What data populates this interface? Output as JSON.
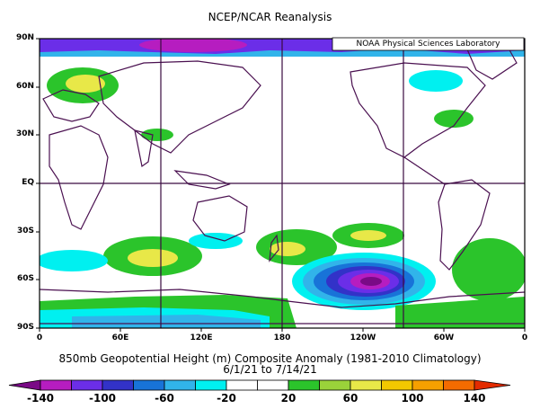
{
  "title": "NCEP/NCAR Reanalysis",
  "credit": "NOAA Physical Sciences Laboratory",
  "caption": "850mb Geopotential Height (m) Composite Anomaly (1981-2010 Climatology)",
  "dates": "6/1/21  to 7/14/21",
  "lat_labels": [
    "90N",
    "60N",
    "30N",
    "EQ",
    "30S",
    "60S",
    "90S"
  ],
  "lon_labels": [
    "0",
    "60E",
    "120E",
    "180",
    "120W",
    "60W",
    "0"
  ],
  "colorbar": {
    "tick_labels": [
      "-140",
      "-100",
      "-60",
      "-20",
      "20",
      "60",
      "100",
      "140"
    ],
    "colors": [
      "#7a0a86",
      "#b61dc0",
      "#6b2ee8",
      "#3232c8",
      "#1873d8",
      "#31b4ea",
      "#00f0f0",
      "#ffffff",
      "#ffffff",
      "#2bc42b",
      "#9ad23a",
      "#e8e848",
      "#f2c800",
      "#f6a000",
      "#f46b00",
      "#e32b00"
    ]
  },
  "anomaly_features": [
    {
      "region": "North Pole / Siberia",
      "sign": "negative",
      "intensity": "moderate"
    },
    {
      "region": "Scandinavia",
      "sign": "positive",
      "intensity": "moderate"
    },
    {
      "region": "South Pacific near 60S 130W",
      "sign": "negative",
      "intensity": "strong"
    },
    {
      "region": "South of Australia / Indian Ocean 40S",
      "sign": "positive",
      "intensity": "moderate"
    },
    {
      "region": "New Zealand / SE Pacific 40S",
      "sign": "positive",
      "intensity": "moderate"
    }
  ]
}
